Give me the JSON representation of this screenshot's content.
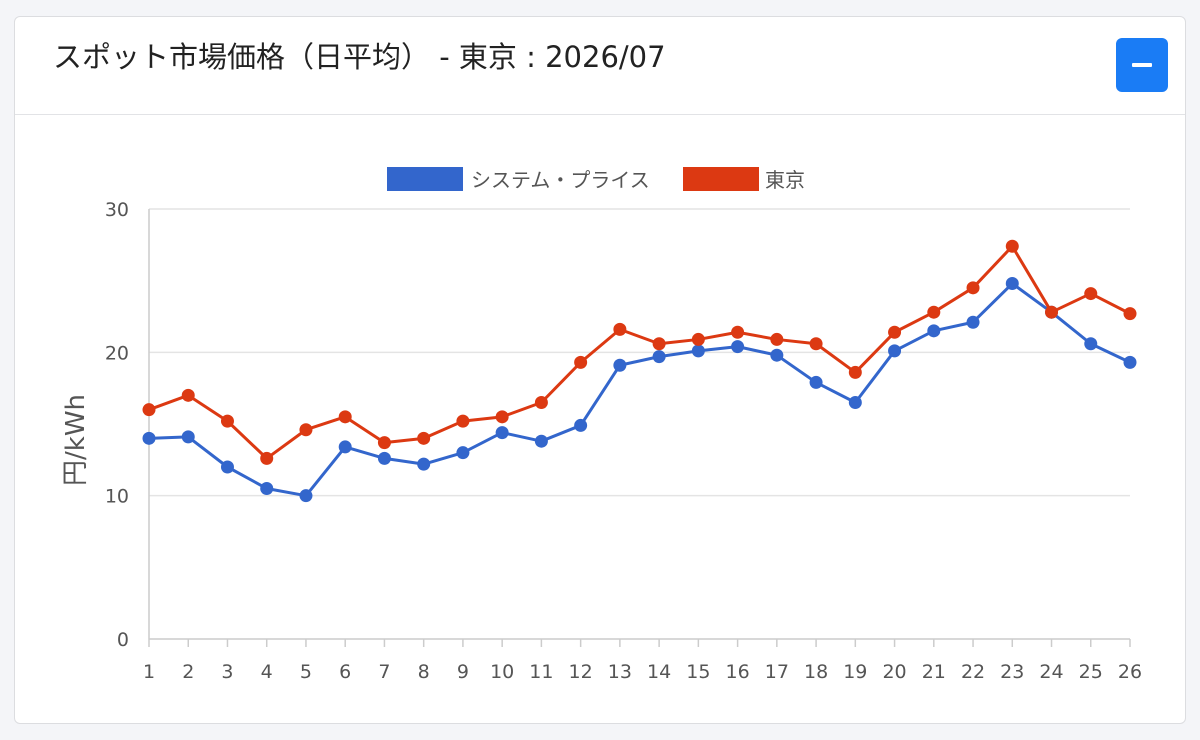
{
  "header": {
    "title": "スポット市場価格（日平均） - 東京 : 2026/07",
    "collapse_label": "−"
  },
  "colors": {
    "system_price": "#3366cc",
    "tokyo": "#dc3912",
    "button": "#1a7cf5"
  },
  "chart_data": {
    "type": "line",
    "title": "",
    "xlabel": "",
    "ylabel": "円/kWh",
    "ylim": [
      0,
      30
    ],
    "yticks": [
      0,
      10,
      20,
      30
    ],
    "grid": true,
    "legend_position": "top",
    "categories": [
      "1",
      "2",
      "3",
      "4",
      "5",
      "6",
      "7",
      "8",
      "9",
      "10",
      "11",
      "12",
      "13",
      "14",
      "15",
      "16",
      "17",
      "18",
      "19",
      "20",
      "21",
      "22",
      "23",
      "24",
      "25",
      "26"
    ],
    "series": [
      {
        "name": "システム・プライス",
        "color": "#3366cc",
        "values": [
          14.0,
          14.1,
          12.0,
          10.5,
          10.0,
          13.4,
          12.6,
          12.2,
          13.0,
          14.4,
          13.8,
          14.9,
          19.1,
          19.7,
          20.1,
          20.4,
          19.8,
          17.9,
          16.5,
          20.1,
          21.5,
          22.1,
          24.8,
          22.8,
          20.6,
          19.3
        ]
      },
      {
        "name": "東京",
        "color": "#dc3912",
        "values": [
          16.0,
          17.0,
          15.2,
          12.6,
          14.6,
          15.5,
          13.7,
          14.0,
          15.2,
          15.5,
          16.5,
          19.3,
          21.6,
          20.6,
          20.9,
          21.4,
          20.9,
          20.6,
          18.6,
          21.4,
          22.8,
          24.5,
          27.4,
          22.8,
          24.1,
          22.7
        ]
      }
    ]
  }
}
